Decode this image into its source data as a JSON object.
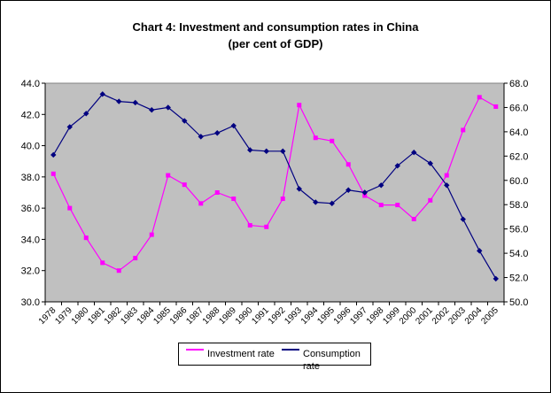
{
  "chart_data": {
    "type": "line",
    "title": "Chart 4: Investment and consumption rates in China",
    "subtitle": "(per cent of GDP)",
    "categories": [
      "1978",
      "1979",
      "1980",
      "1981",
      "1982",
      "1983",
      "1984",
      "1985",
      "1986",
      "1987",
      "1988",
      "1989",
      "1990",
      "1991",
      "1992",
      "1993",
      "1994",
      "1995",
      "1996",
      "1997",
      "1998",
      "1999",
      "2000",
      "2001",
      "2002",
      "2003",
      "2004",
      "2005"
    ],
    "series": [
      {
        "name": "Investment rate",
        "axis": "left",
        "color": "#ff00ff",
        "marker": "square",
        "values": [
          38.2,
          36.0,
          34.1,
          32.5,
          32.0,
          32.8,
          34.3,
          38.1,
          37.5,
          36.3,
          37.0,
          36.6,
          34.9,
          34.8,
          36.6,
          42.6,
          40.5,
          40.3,
          38.8,
          36.8,
          36.2,
          36.2,
          35.3,
          36.5,
          38.1,
          41.0,
          43.1,
          42.5
        ]
      },
      {
        "name": "Consumption rate",
        "axis": "right",
        "color": "#000080",
        "marker": "diamond",
        "values": [
          62.1,
          64.4,
          65.5,
          67.1,
          66.5,
          66.4,
          65.8,
          66.0,
          64.9,
          63.6,
          63.9,
          64.5,
          62.5,
          62.4,
          62.4,
          59.3,
          58.2,
          58.1,
          59.2,
          59.0,
          59.6,
          61.2,
          62.3,
          61.4,
          59.6,
          56.8,
          54.2,
          51.9
        ]
      }
    ],
    "y_left": {
      "ylim": [
        30.0,
        44.0
      ],
      "ticks": [
        "30.0",
        "32.0",
        "34.0",
        "36.0",
        "38.0",
        "40.0",
        "42.0",
        "44.0"
      ]
    },
    "y_right": {
      "ylim": [
        50.0,
        68.0
      ],
      "ticks": [
        "50.0",
        "52.0",
        "54.0",
        "56.0",
        "58.0",
        "60.0",
        "62.0",
        "64.0",
        "66.0",
        "68.0"
      ]
    },
    "plot_background": "#c0c0c0",
    "grid": false,
    "legend_position": "bottom"
  }
}
